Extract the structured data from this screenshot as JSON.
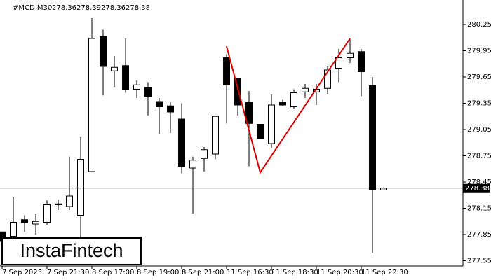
{
  "chart_data": {
    "type": "candlestick",
    "symbol": "#MCD,M30",
    "categories": [
      "7 Sep 2023",
      null,
      null,
      null,
      "7 Sep 21:30",
      null,
      null,
      null,
      "8 Sep 17:00",
      null,
      null,
      null,
      "8 Sep 19:00",
      null,
      null,
      null,
      "8 Sep 21:00",
      null,
      null,
      null,
      "11 Sep 16:30",
      null,
      null,
      null,
      "11 Sep 18:30",
      null,
      null,
      null,
      "11 Sep 20:30",
      null,
      null,
      null,
      "11 Sep 22:30",
      null,
      null
    ],
    "open": [
      277.88,
      277.83,
      278.02,
      277.97,
      277.99,
      278.19,
      278.17,
      278.07,
      278.57,
      280.11,
      279.72,
      279.78,
      279.51,
      279.53,
      279.37,
      279.32,
      279.17,
      278.61,
      278.72,
      278.77,
      279.87,
      279.63,
      279.36,
      279.11,
      278.89,
      279.36,
      279.31,
      279.48,
      279.48,
      279.52,
      279.75,
      279.87,
      279.94,
      279.55,
      278.36
    ],
    "high": [
      277.88,
      278.28,
      278.07,
      278.09,
      278.24,
      278.25,
      278.74,
      278.97,
      280.33,
      280.19,
      279.89,
      280.09,
      279.61,
      279.59,
      279.41,
      279.36,
      279.35,
      278.74,
      278.85,
      279.2,
      279.91,
      279.63,
      279.49,
      279.11,
      279.45,
      279.39,
      279.51,
      279.57,
      279.57,
      279.77,
      279.97,
      280.09,
      279.97,
      279.65,
      278.39
    ],
    "low": [
      277.76,
      277.77,
      277.88,
      277.85,
      277.96,
      278.13,
      278.13,
      277.77,
      278.57,
      279.44,
      279.53,
      279.47,
      279.41,
      279.21,
      279.0,
      279.01,
      278.55,
      278.09,
      278.57,
      278.71,
      279.12,
      279.21,
      278.63,
      278.95,
      278.84,
      279.32,
      279.29,
      279.41,
      279.33,
      279.45,
      279.59,
      279.81,
      279.43,
      277.64,
      278.36
    ],
    "close": [
      277.77,
      277.99,
      277.99,
      278.0,
      278.19,
      278.2,
      278.29,
      278.71,
      280.09,
      279.77,
      279.76,
      279.51,
      279.56,
      279.43,
      279.31,
      279.25,
      278.63,
      278.7,
      278.82,
      279.2,
      279.56,
      279.33,
      279.12,
      278.95,
      279.33,
      279.33,
      279.47,
      279.52,
      279.51,
      279.73,
      279.87,
      279.92,
      279.71,
      278.36,
      278.38
    ],
    "ylim": [
      277.49,
      280.49
    ],
    "yticks": [
      280.25,
      279.95,
      279.65,
      279.35,
      279.05,
      278.75,
      278.45,
      278.15,
      277.85,
      277.55
    ],
    "annotation_line": {
      "color": "#e00000",
      "points": [
        [
          20,
          280.0
        ],
        [
          23,
          278.56
        ],
        [
          31,
          280.09
        ]
      ]
    },
    "watermark": "InstaFintech"
  }
}
